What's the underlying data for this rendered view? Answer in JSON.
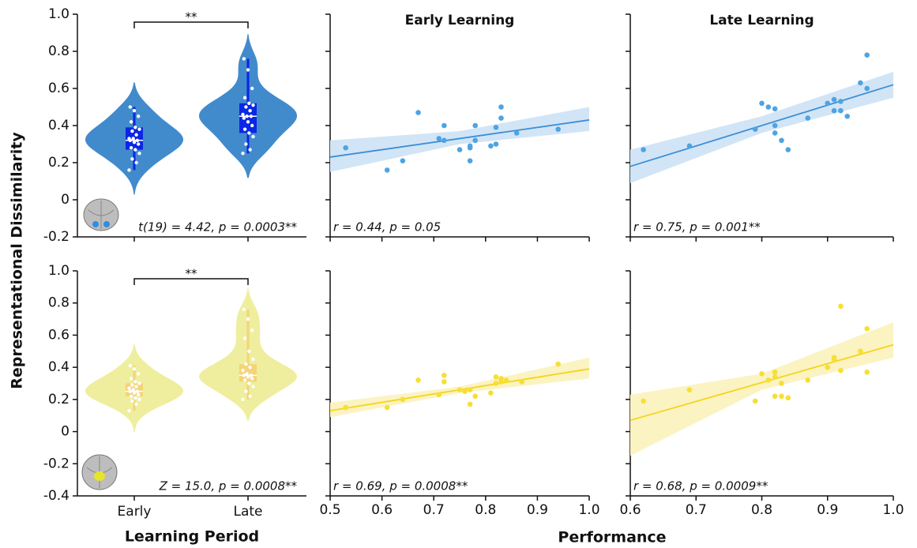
{
  "figure": {
    "ylabel": "Representational Dissimilarity",
    "xlabel": "Performance"
  },
  "chart_data": [
    {
      "type": "violin",
      "categories": [
        null,
        null
      ],
      "color": "#418bcc",
      "box_color": "#0a26e6",
      "point_color": "#ffffff",
      "significance": "**",
      "annotation": "t(19) = 4.42, p = 0.0003**",
      "ylim": [
        -0.2,
        1.0
      ],
      "yticks": [
        {
          "value": 1.0,
          "label": "1.0"
        },
        0.8,
        0.6,
        0.4,
        0.2,
        0,
        -0.2
      ],
      "groups": [
        {
          "values": [
            0.16,
            0.2,
            0.22,
            0.25,
            0.27,
            0.28,
            0.3,
            0.31,
            0.32,
            0.32,
            0.33,
            0.33,
            0.35,
            0.37,
            0.38,
            0.39,
            0.42,
            0.45,
            0.48,
            0.5
          ],
          "box": {
            "whislo": 0.16,
            "q1": 0.27,
            "median": 0.32,
            "q3": 0.39,
            "whishi": 0.5
          }
        },
        {
          "values": [
            0.25,
            0.27,
            0.3,
            0.34,
            0.36,
            0.38,
            0.4,
            0.42,
            0.44,
            0.45,
            0.45,
            0.46,
            0.48,
            0.5,
            0.51,
            0.52,
            0.55,
            0.6,
            0.7,
            0.76
          ],
          "box": {
            "whislo": 0.25,
            "q1": 0.36,
            "median": 0.45,
            "q3": 0.52,
            "whishi": 0.76
          }
        }
      ]
    },
    {
      "type": "scatter",
      "title": "Early Learning",
      "color": "#4ea4e2",
      "sharex": true,
      "sharey": true,
      "annotation": "r = 0.44, p = 0.05",
      "xlim": [
        0.5,
        1.0
      ],
      "ylim": [
        -0.2,
        1.0
      ],
      "xticks": [
        0.5,
        0.6,
        0.7,
        0.8,
        0.9,
        1.0
      ],
      "yticks": [
        1.0,
        0.8,
        0.6,
        0.4,
        0.2,
        0,
        -0.2
      ],
      "x": [
        0.53,
        0.61,
        0.64,
        0.67,
        0.71,
        0.72,
        0.72,
        0.75,
        0.77,
        0.77,
        0.77,
        0.78,
        0.78,
        0.81,
        0.82,
        0.82,
        0.83,
        0.83,
        0.86,
        0.94
      ],
      "y": [
        0.28,
        0.16,
        0.21,
        0.47,
        0.33,
        0.32,
        0.4,
        0.27,
        0.29,
        0.21,
        0.28,
        0.32,
        0.4,
        0.29,
        0.3,
        0.39,
        0.5,
        0.44,
        0.36,
        0.38
      ],
      "fit": {
        "x": [
          0.5,
          1.0
        ],
        "y": [
          0.23,
          0.43
        ],
        "color": "#3b8fd8"
      },
      "band": {
        "x": [
          0.5,
          0.75,
          1.0
        ],
        "lower": [
          0.15,
          0.3,
          0.37
        ],
        "upper": [
          0.32,
          0.37,
          0.5
        ],
        "color": "#d2e5f6"
      }
    },
    {
      "type": "scatter",
      "title": "Late Learning",
      "color": "#4ea4e2",
      "sharex": true,
      "sharey": true,
      "annotation": "r = 0.75, p = 0.001**",
      "xlim": [
        0.6,
        1.0
      ],
      "ylim": [
        -0.2,
        1.0
      ],
      "xticks": [
        0.6,
        0.7,
        0.8,
        0.9,
        1.0
      ],
      "yticks": [
        1.0,
        0.8,
        0.6,
        0.4,
        0.2,
        0,
        -0.2
      ],
      "x": [
        0.62,
        0.69,
        0.79,
        0.8,
        0.81,
        0.82,
        0.82,
        0.82,
        0.83,
        0.84,
        0.87,
        0.9,
        0.91,
        0.91,
        0.92,
        0.92,
        0.93,
        0.95,
        0.96,
        0.96
      ],
      "y": [
        0.27,
        0.29,
        0.38,
        0.52,
        0.5,
        0.49,
        0.4,
        0.36,
        0.32,
        0.27,
        0.44,
        0.52,
        0.48,
        0.54,
        0.53,
        0.48,
        0.45,
        0.63,
        0.78,
        0.6
      ],
      "fit": {
        "x": [
          0.6,
          1.0
        ],
        "y": [
          0.18,
          0.62
        ],
        "color": "#3b8fd8"
      },
      "band": {
        "x": [
          0.6,
          0.8,
          1.0
        ],
        "lower": [
          0.09,
          0.36,
          0.55
        ],
        "upper": [
          0.27,
          0.45,
          0.69
        ],
        "color": "#d2e5f6"
      }
    },
    {
      "type": "violin",
      "categories": [
        "Early",
        "Late"
      ],
      "xlabel": "Learning Period",
      "color": "#eeee9e",
      "box_color": "#f3d478",
      "point_color": "#ffffff",
      "significance": "**",
      "annotation": "Z = 15.0, p = 0.0008**",
      "ylim": [
        -0.4,
        1.0
      ],
      "yticks": [
        {
          "value": 1.0,
          "label": "1.0"
        },
        0.8,
        0.6,
        0.4,
        0.2,
        0,
        -0.2,
        -0.4
      ],
      "groups": [
        {
          "values": [
            0.13,
            0.17,
            0.19,
            0.2,
            0.21,
            0.22,
            0.23,
            0.24,
            0.25,
            0.25,
            0.26,
            0.27,
            0.28,
            0.29,
            0.3,
            0.31,
            0.33,
            0.36,
            0.39,
            0.41
          ],
          "box": {
            "whislo": 0.13,
            "q1": 0.22,
            "median": 0.25,
            "q3": 0.3,
            "whishi": 0.41
          }
        },
        {
          "values": [
            0.2,
            0.22,
            0.25,
            0.28,
            0.3,
            0.32,
            0.33,
            0.34,
            0.35,
            0.35,
            0.36,
            0.38,
            0.4,
            0.42,
            0.45,
            0.5,
            0.58,
            0.63,
            0.7,
            0.76
          ],
          "box": {
            "whislo": 0.2,
            "q1": 0.31,
            "median": 0.35,
            "q3": 0.42,
            "whishi": 0.76
          }
        }
      ]
    },
    {
      "type": "scatter",
      "color": "#f7df33",
      "sharey": true,
      "annotation": "r = 0.69, p = 0.0008**",
      "xlim": [
        0.5,
        1.0
      ],
      "ylim": [
        -0.4,
        1.0
      ],
      "xticks": [
        0.5,
        0.6,
        0.7,
        0.8,
        0.9,
        {
          "value": 1.0,
          "label": "1.0"
        }
      ],
      "yticks": [
        1.0,
        0.8,
        0.6,
        0.4,
        0.2,
        0,
        -0.2,
        -0.4
      ],
      "x": [
        0.53,
        0.61,
        0.64,
        0.67,
        0.71,
        0.72,
        0.72,
        0.75,
        0.76,
        0.77,
        0.77,
        0.78,
        0.81,
        0.82,
        0.82,
        0.83,
        0.83,
        0.84,
        0.87,
        0.94
      ],
      "y": [
        0.15,
        0.15,
        0.2,
        0.32,
        0.23,
        0.35,
        0.31,
        0.26,
        0.25,
        0.17,
        0.26,
        0.22,
        0.24,
        0.3,
        0.34,
        0.33,
        0.31,
        0.32,
        0.31,
        0.42
      ],
      "fit": {
        "x": [
          0.5,
          1.0
        ],
        "y": [
          0.13,
          0.39
        ],
        "color": "#f4d51c"
      },
      "band": {
        "x": [
          0.5,
          0.75,
          1.0
        ],
        "lower": [
          0.09,
          0.24,
          0.33
        ],
        "upper": [
          0.18,
          0.28,
          0.46
        ],
        "color": "#fbf3c2"
      }
    },
    {
      "type": "scatter",
      "color": "#f7df33",
      "sharey": true,
      "annotation": "r = 0.68, p = 0.0009**",
      "xlim": [
        0.6,
        1.0
      ],
      "ylim": [
        -0.4,
        1.0
      ],
      "xticks": [
        0.6,
        0.7,
        0.8,
        0.9,
        {
          "value": 1.0,
          "label": "1.0"
        }
      ],
      "yticks": [
        1.0,
        0.8,
        0.6,
        0.4,
        0.2,
        0,
        -0.2,
        -0.4
      ],
      "x": [
        0.62,
        0.69,
        0.79,
        0.8,
        0.81,
        0.82,
        0.82,
        0.82,
        0.83,
        0.83,
        0.84,
        0.87,
        0.9,
        0.91,
        0.91,
        0.92,
        0.92,
        0.95,
        0.96,
        0.96
      ],
      "y": [
        0.19,
        0.26,
        0.19,
        0.36,
        0.32,
        0.34,
        0.22,
        0.37,
        0.22,
        0.3,
        0.21,
        0.32,
        0.4,
        0.45,
        0.46,
        0.38,
        0.78,
        0.5,
        0.64,
        0.37
      ],
      "fit": {
        "x": [
          0.6,
          1.0
        ],
        "y": [
          0.07,
          0.54
        ],
        "color": "#f4d51c"
      },
      "band": {
        "x": [
          0.6,
          0.8,
          1.0
        ],
        "lower": [
          -0.15,
          0.26,
          0.46
        ],
        "upper": [
          0.23,
          0.36,
          0.68
        ],
        "color": "#fbf3c2"
      }
    }
  ]
}
